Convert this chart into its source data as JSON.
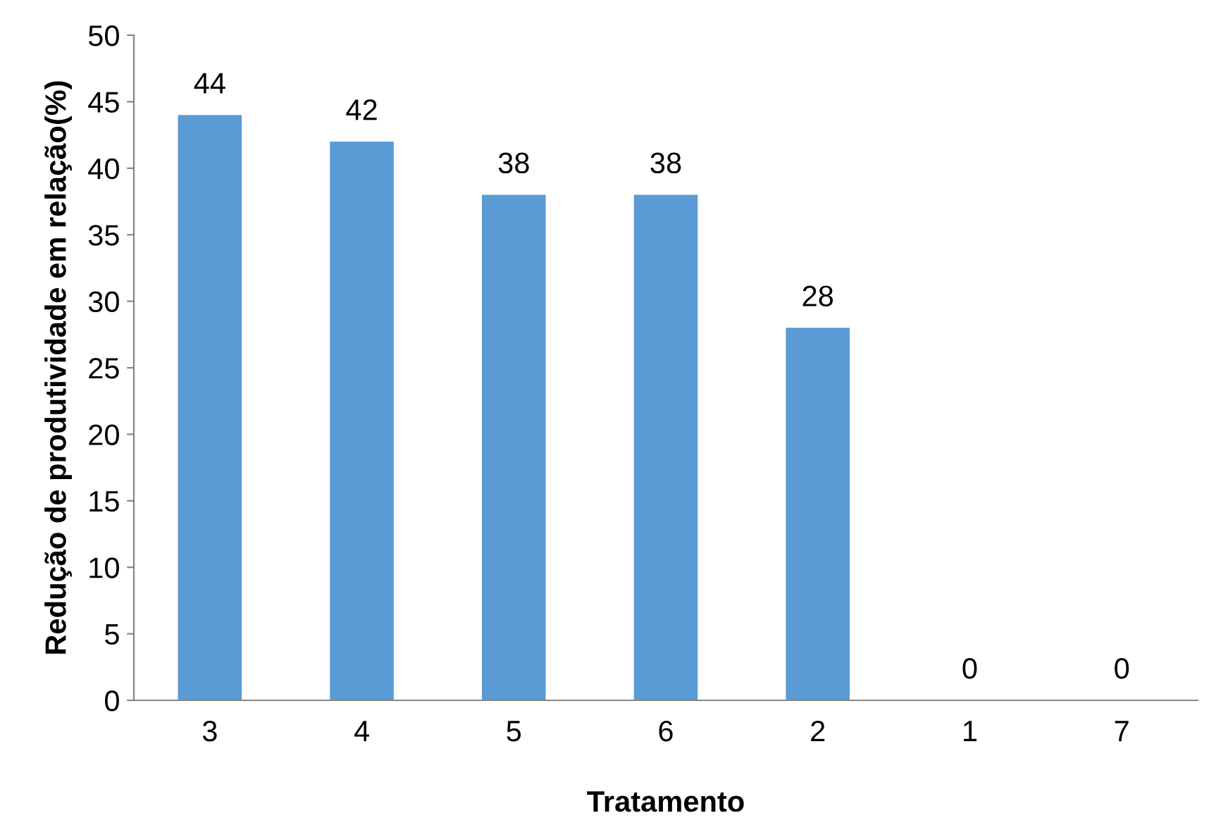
{
  "chart_data": {
    "type": "bar",
    "xlabel": "Tratamento",
    "ylabel": "Redução de produtividade em relação(%)",
    "categories": [
      "3",
      "4",
      "5",
      "6",
      "2",
      "1",
      "7"
    ],
    "values": [
      44,
      42,
      38,
      38,
      28,
      0,
      0
    ],
    "color": "#5b9bd5",
    "ylim": [
      0,
      50
    ],
    "yticks": [
      0,
      5,
      10,
      15,
      20,
      25,
      30,
      35,
      40,
      45,
      50
    ],
    "grid": false,
    "data_labels": true
  }
}
